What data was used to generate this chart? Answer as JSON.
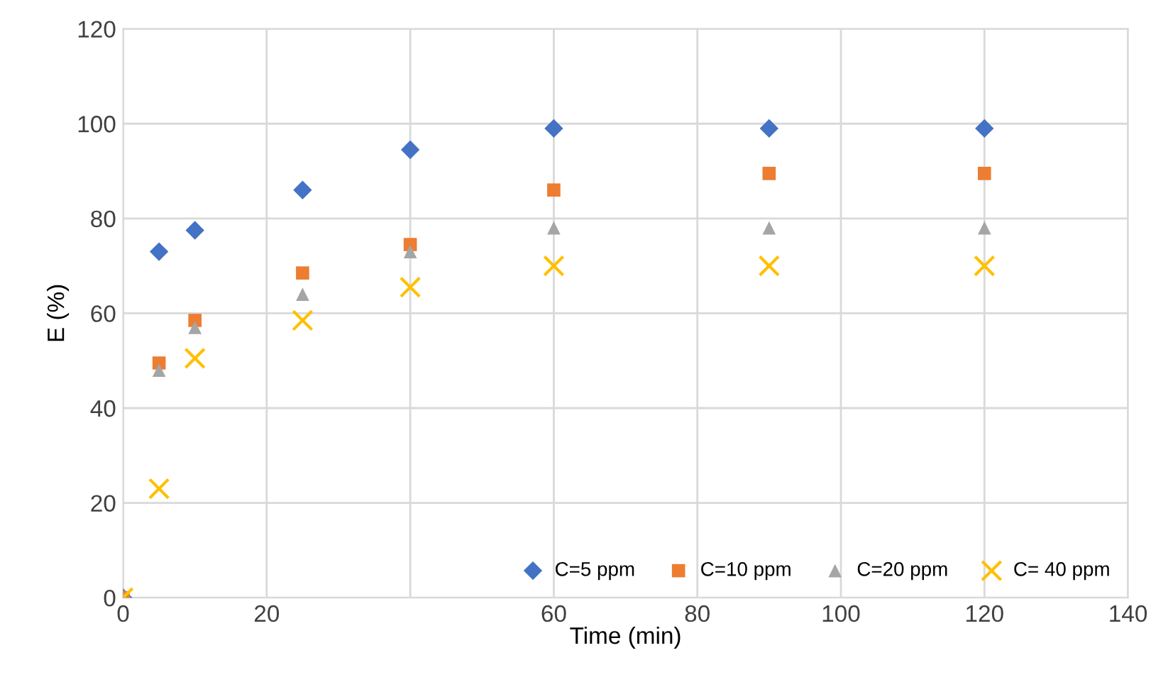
{
  "chart_data": {
    "type": "scatter",
    "xlabel": "Time (min)",
    "ylabel": "E (%)",
    "x": [
      0,
      5,
      10,
      25,
      40,
      60,
      90,
      120
    ],
    "series": [
      {
        "name": "C=5 ppm",
        "color": "#4472c4",
        "marker": "diamond",
        "values": [
          0,
          73,
          77.5,
          86,
          94.5,
          99,
          99,
          99
        ]
      },
      {
        "name": "C=10 ppm",
        "color": "#ed7d31",
        "marker": "square",
        "values": [
          0,
          49.5,
          58.5,
          68.5,
          74.5,
          86,
          89.5,
          89.5
        ]
      },
      {
        "name": "C=20 ppm",
        "color": "#a5a5a5",
        "marker": "triangle",
        "values": [
          0,
          48,
          57,
          64,
          73,
          78,
          78,
          78
        ]
      },
      {
        "name": "C= 40 ppm",
        "color": "#ffc000",
        "marker": "cross",
        "values": [
          0,
          23,
          50.5,
          58.5,
          65.5,
          70,
          70,
          70
        ]
      }
    ],
    "xlim": [
      0,
      140
    ],
    "xticks": [
      0,
      20,
      {
        "value": 40,
        "label": null
      },
      60,
      80,
      100,
      120,
      140
    ],
    "ylim": [
      0,
      120
    ],
    "yticks": [
      0,
      20,
      40,
      60,
      80,
      100,
      120
    ],
    "grid": true,
    "legend": "bottom right"
  }
}
